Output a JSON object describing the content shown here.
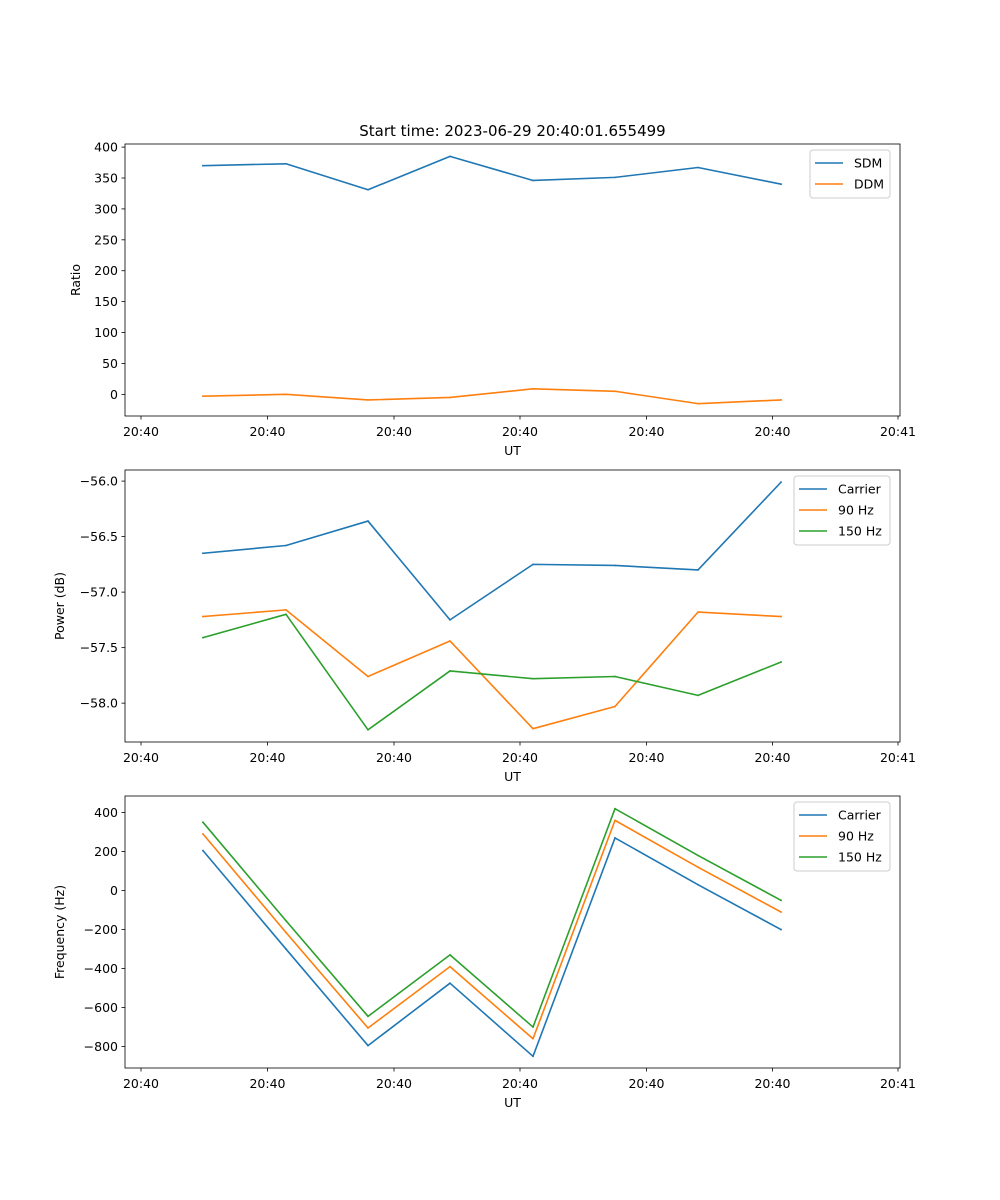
{
  "figure": {
    "title": "Start time: 2023-06-29 20:40:01.655499"
  },
  "chart_data": [
    {
      "type": "line",
      "xlabel": "UT",
      "ylabel": "Ratio",
      "x_tick_labels": [
        "20:40",
        "20:40",
        "20:40",
        "20:40",
        "20:40",
        "20:40",
        "20:41"
      ],
      "y_ticks": [
        0,
        50,
        100,
        150,
        200,
        250,
        300,
        350,
        400
      ],
      "ylim": [
        -35,
        405
      ],
      "legend_position": "top-right",
      "series": [
        {
          "name": "SDM",
          "color": "#1f77b4",
          "values": [
            370,
            373,
            331,
            385,
            346,
            351,
            367,
            340
          ]
        },
        {
          "name": "DDM",
          "color": "#ff7f0e",
          "values": [
            -3,
            0,
            -9,
            -5,
            9,
            5,
            -15,
            -9
          ]
        }
      ]
    },
    {
      "type": "line",
      "xlabel": "UT",
      "ylabel": "Power (dB)",
      "x_tick_labels": [
        "20:40",
        "20:40",
        "20:40",
        "20:40",
        "20:40",
        "20:40",
        "20:41"
      ],
      "y_ticks": [
        -56.0,
        -56.5,
        -57.0,
        -57.5,
        -58.0
      ],
      "y_tick_labels": [
        "−56.0",
        "−56.5",
        "−57.0",
        "−57.5",
        "−58.0"
      ],
      "ylim": [
        -58.35,
        -55.9
      ],
      "legend_position": "top-right",
      "series": [
        {
          "name": "Carrier",
          "color": "#1f77b4",
          "values": [
            -56.65,
            -56.58,
            -56.36,
            -57.25,
            -56.75,
            -56.76,
            -56.8,
            -56.01
          ]
        },
        {
          "name": "90 Hz",
          "color": "#ff7f0e",
          "values": [
            -57.22,
            -57.16,
            -57.76,
            -57.44,
            -58.23,
            -58.03,
            -57.18,
            -57.22
          ]
        },
        {
          "name": "150 Hz",
          "color": "#2ca02c",
          "values": [
            -57.41,
            -57.2,
            -58.24,
            -57.71,
            -57.78,
            -57.76,
            -57.93,
            -57.63
          ]
        }
      ]
    },
    {
      "type": "line",
      "xlabel": "UT",
      "ylabel": "Frequency (Hz)",
      "x_tick_labels": [
        "20:40",
        "20:40",
        "20:40",
        "20:40",
        "20:40",
        "20:40",
        "20:41"
      ],
      "y_ticks": [
        400,
        200,
        0,
        -200,
        -400,
        -600,
        -800
      ],
      "y_tick_labels": [
        "400",
        "200",
        "0",
        "−200",
        "−400",
        "−600",
        "−800"
      ],
      "ylim": [
        -910,
        485
      ],
      "legend_position": "top-right",
      "series": [
        {
          "name": "Carrier",
          "color": "#1f77b4",
          "values": [
            205,
            -300,
            -795,
            -475,
            -850,
            270,
            30,
            -200
          ]
        },
        {
          "name": "90 Hz",
          "color": "#ff7f0e",
          "values": [
            290,
            -215,
            -705,
            -390,
            -760,
            360,
            120,
            -110
          ]
        },
        {
          "name": "150 Hz",
          "color": "#2ca02c",
          "values": [
            350,
            -155,
            -645,
            -330,
            -700,
            420,
            180,
            -50
          ]
        }
      ]
    }
  ]
}
